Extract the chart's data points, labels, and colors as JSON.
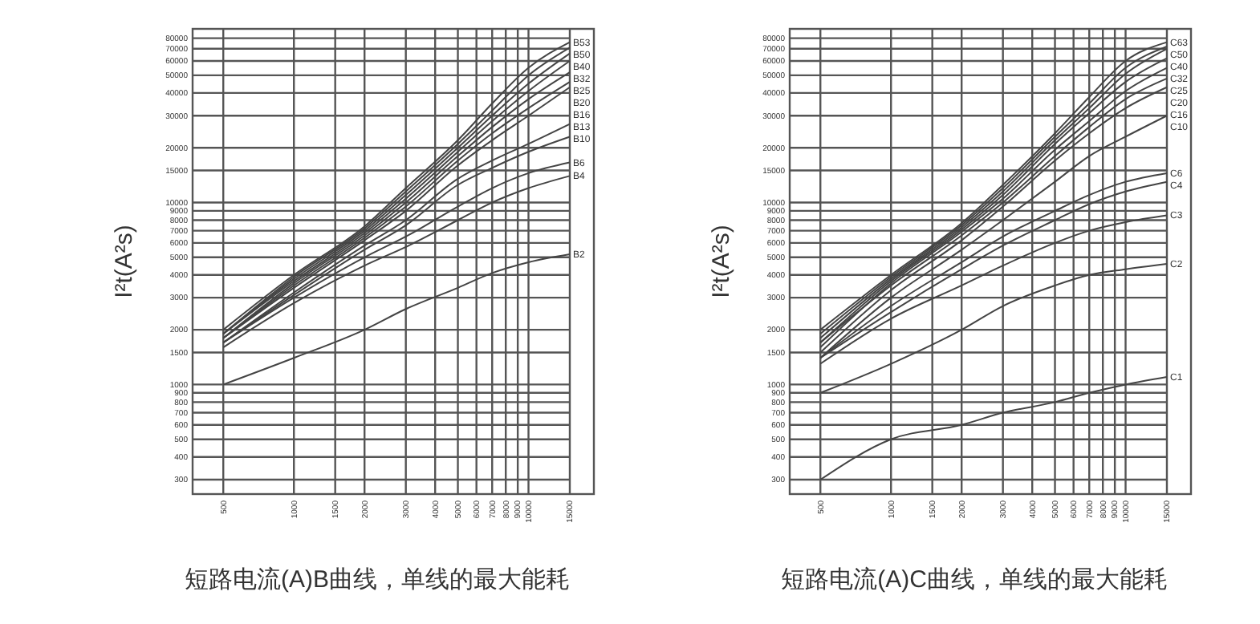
{
  "chart_data": [
    {
      "type": "line",
      "xlabel": "短路电流(A)B曲线，单线的最大能耗",
      "ylabel": "I²t(A²s)",
      "x": [
        500,
        1000,
        2000,
        3000,
        5000,
        7000,
        10000,
        15000
      ],
      "xlim": [
        370,
        19000
      ],
      "ylim": [
        250,
        90000
      ],
      "log": "xy",
      "xticks": [
        500,
        1000,
        1500,
        2000,
        3000,
        4000,
        5000,
        6000,
        7000,
        8000,
        9000,
        10000,
        15000
      ],
      "yticks": [
        300,
        400,
        500,
        600,
        700,
        800,
        900,
        1000,
        1500,
        2000,
        3000,
        4000,
        5000,
        6000,
        7000,
        8000,
        9000,
        10000,
        15000,
        20000,
        30000,
        40000,
        50000,
        60000,
        70000,
        80000
      ],
      "grid": true,
      "legend": false,
      "marker": "none",
      "line_style": "solid",
      "series": [
        {
          "name": "B2",
          "color": "#444444",
          "values": [
            1000,
            1400,
            2000,
            2600,
            3400,
            4100,
            4700,
            5200
          ]
        },
        {
          "name": "B4",
          "color": "#444444",
          "values": [
            1600,
            2800,
            4500,
            5700,
            8000,
            10000,
            12000,
            14000
          ]
        },
        {
          "name": "B6",
          "color": "#444444",
          "values": [
            1700,
            3000,
            5000,
            6500,
            9500,
            12000,
            14500,
            16600
          ]
        },
        {
          "name": "B10",
          "color": "#444444",
          "values": [
            1700,
            3100,
            5500,
            7500,
            12500,
            15500,
            19000,
            23000
          ]
        },
        {
          "name": "B13",
          "color": "#444444",
          "values": [
            1700,
            3200,
            5800,
            8000,
            13500,
            17000,
            21000,
            27000
          ]
        },
        {
          "name": "B16",
          "color": "#444444",
          "values": [
            1800,
            3400,
            6200,
            9000,
            16000,
            22000,
            30000,
            43000
          ]
        },
        {
          "name": "B20",
          "color": "#444444",
          "values": [
            1800,
            3500,
            6400,
            9500,
            17000,
            24000,
            33000,
            46000
          ]
        },
        {
          "name": "B25",
          "color": "#444444",
          "values": [
            1800,
            3600,
            6600,
            10000,
            18000,
            26000,
            37000,
            52000
          ]
        },
        {
          "name": "B32",
          "color": "#444444",
          "values": [
            1900,
            3700,
            6800,
            10500,
            19000,
            28000,
            41000,
            60000
          ]
        },
        {
          "name": "B40",
          "color": "#444444",
          "values": [
            1900,
            3800,
            7000,
            11000,
            20000,
            30000,
            45000,
            66000
          ]
        },
        {
          "name": "B50",
          "color": "#444444",
          "values": [
            1900,
            3900,
            7200,
            11500,
            21000,
            32000,
            50000,
            71000
          ]
        },
        {
          "name": "B53",
          "color": "#444444",
          "values": [
            2000,
            4000,
            7400,
            12000,
            22000,
            35000,
            55000,
            76000
          ]
        }
      ]
    },
    {
      "type": "line",
      "xlabel": "短路电流(A)C曲线，单线的最大能耗",
      "ylabel": "I²t(A²s)",
      "x": [
        500,
        1000,
        2000,
        3000,
        5000,
        7000,
        10000,
        15000
      ],
      "xlim": [
        370,
        19000
      ],
      "ylim": [
        250,
        90000
      ],
      "log": "xy",
      "xticks": [
        500,
        1000,
        1500,
        2000,
        3000,
        4000,
        5000,
        6000,
        7000,
        8000,
        9000,
        10000,
        15000
      ],
      "yticks": [
        300,
        400,
        500,
        600,
        700,
        800,
        900,
        1000,
        1500,
        2000,
        3000,
        4000,
        5000,
        6000,
        7000,
        8000,
        9000,
        10000,
        15000,
        20000,
        30000,
        40000,
        50000,
        60000,
        70000,
        80000
      ],
      "grid": true,
      "legend": false,
      "marker": "none",
      "line_style": "solid",
      "series": [
        {
          "name": "C1",
          "color": "#444444",
          "values": [
            300,
            500,
            600,
            700,
            800,
            900,
            1000,
            1100
          ]
        },
        {
          "name": "C2",
          "color": "#444444",
          "values": [
            900,
            1300,
            2000,
            2700,
            3500,
            4000,
            4300,
            4600
          ]
        },
        {
          "name": "C3",
          "color": "#444444",
          "values": [
            1300,
            2300,
            3500,
            4500,
            6000,
            7000,
            7800,
            8500
          ]
        },
        {
          "name": "C4",
          "color": "#444444",
          "values": [
            1400,
            2500,
            4300,
            5800,
            8000,
            9800,
            11500,
            13000
          ]
        },
        {
          "name": "C6",
          "color": "#444444",
          "values": [
            1400,
            2700,
            4700,
            6500,
            9000,
            11000,
            13000,
            14500
          ]
        },
        {
          "name": "C10",
          "color": "#444444",
          "values": [
            1400,
            3000,
            5500,
            8000,
            13000,
            18000,
            23000,
            30000
          ]
        },
        {
          "name": "C16",
          "color": "#444444",
          "values": [
            1500,
            3300,
            6200,
            9500,
            17000,
            24000,
            33000,
            43000
          ]
        },
        {
          "name": "C20",
          "color": "#444444",
          "values": [
            1700,
            3500,
            6600,
            10000,
            18000,
            26000,
            37000,
            48000
          ]
        },
        {
          "name": "C25",
          "color": "#444444",
          "values": [
            1600,
            3600,
            6900,
            10500,
            19500,
            28000,
            41000,
            55000
          ]
        },
        {
          "name": "C32",
          "color": "#444444",
          "values": [
            1700,
            3700,
            7100,
            11000,
            21000,
            31000,
            46000,
            62000
          ]
        },
        {
          "name": "C40",
          "color": "#444444",
          "values": [
            1800,
            3800,
            7300,
            11500,
            22000,
            33000,
            51000,
            70000
          ]
        },
        {
          "name": "C50",
          "color": "#444444",
          "values": [
            1900,
            3900,
            7500,
            12000,
            23000,
            35000,
            55000,
            72000
          ]
        },
        {
          "name": "C63",
          "color": "#444444",
          "values": [
            2000,
            4000,
            7700,
            12500,
            24000,
            38000,
            60000,
            76000
          ]
        }
      ]
    }
  ]
}
